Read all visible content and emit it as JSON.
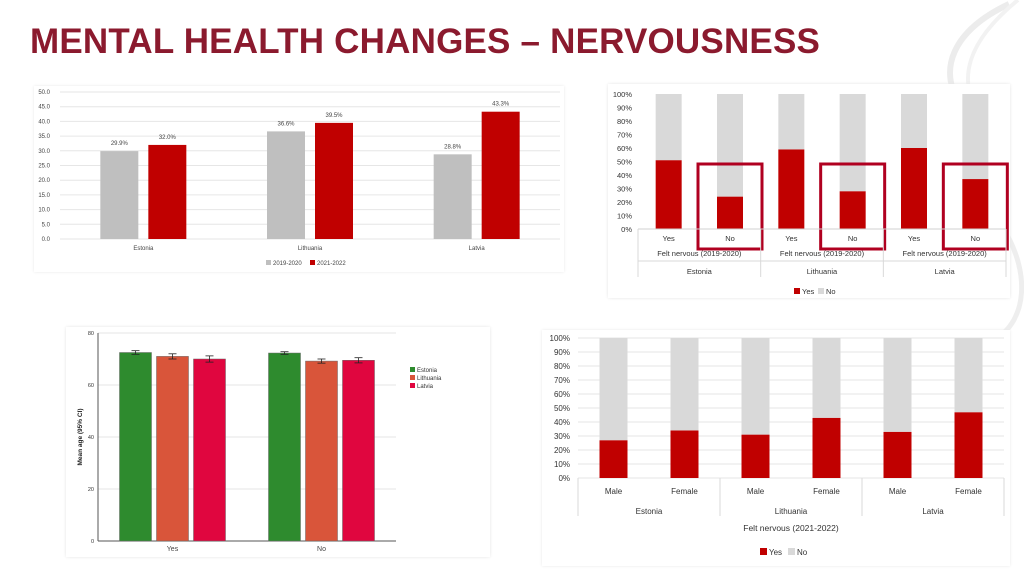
{
  "title": "MENTAL HEALTH CHANGES – NERVOUSNESS",
  "colors": {
    "title": "#8b1a2e",
    "red": "#c00000",
    "grey": "#bfbfbf",
    "light_grey": "#d9d9d9",
    "estonia": "#2e8b2e",
    "lithuania": "#d9553a",
    "latvia": "#e0063f"
  },
  "chart_data": [
    {
      "id": "chart1",
      "type": "bar",
      "categories": [
        "Estonia",
        "Lithuania",
        "Latvia"
      ],
      "series": [
        {
          "name": "2019-2020",
          "values": [
            29.9,
            36.6,
            28.8
          ],
          "labels": [
            "29.9%",
            "36.6%",
            "28.8%"
          ],
          "color": "#bfbfbf"
        },
        {
          "name": "2021-2022",
          "values": [
            32.0,
            39.5,
            43.3
          ],
          "labels": [
            "32.0%",
            "39.5%",
            "43.3%"
          ],
          "color": "#c00000"
        }
      ],
      "ylim": [
        0,
        50
      ],
      "yticks": [
        "0.0",
        "5.0",
        "10.0",
        "15.0",
        "20.0",
        "25.0",
        "30.0",
        "35.0",
        "40.0",
        "45.0",
        "50.0"
      ],
      "grid": true,
      "legend": "bottom"
    },
    {
      "id": "chart2",
      "type": "bar",
      "stacked": "percent",
      "categories": [
        "Yes",
        "No",
        "Yes",
        "No",
        "Yes",
        "No"
      ],
      "group_label": "Felt nervous (2019-2020)",
      "groups": [
        "Estonia",
        "Lithuania",
        "Latvia"
      ],
      "series": [
        {
          "name": "Yes",
          "values": [
            51,
            24,
            59,
            28,
            60,
            37
          ],
          "color": "#c00000"
        },
        {
          "name": "No",
          "values": [
            49,
            76,
            41,
            72,
            40,
            63
          ],
          "color": "#d9d9d9"
        }
      ],
      "highlighted": [
        "No",
        "No",
        "No"
      ],
      "ylim": [
        0,
        100
      ],
      "yticks": [
        "0%",
        "10%",
        "20%",
        "30%",
        "40%",
        "50%",
        "60%",
        "70%",
        "80%",
        "90%",
        "100%"
      ],
      "legend": "bottom"
    },
    {
      "id": "chart3",
      "type": "bar",
      "categories": [
        "Yes",
        "No"
      ],
      "ylabel": "Mean age (95% CI)",
      "series": [
        {
          "name": "Estonia",
          "values": [
            72.5,
            72.3
          ],
          "ci": [
            0.7,
            0.5
          ],
          "color": "#2e8b2e"
        },
        {
          "name": "Lithuania",
          "values": [
            71.0,
            69.2
          ],
          "ci": [
            1.0,
            0.8
          ],
          "color": "#d9553a"
        },
        {
          "name": "Latvia",
          "values": [
            70.0,
            69.5
          ],
          "ci": [
            1.2,
            1.0
          ],
          "color": "#e0063f"
        }
      ],
      "ylim": [
        0,
        80
      ],
      "yticks": [
        "0",
        "20",
        "40",
        "60",
        "80"
      ],
      "grid": true,
      "legend": "right"
    },
    {
      "id": "chart4",
      "type": "bar",
      "stacked": "percent",
      "categories": [
        "Male",
        "Female",
        "Male",
        "Female",
        "Male",
        "Female"
      ],
      "groups": [
        "Estonia",
        "Lithuania",
        "Latvia"
      ],
      "xlabel": "Felt nervous (2021-2022)",
      "series": [
        {
          "name": "Yes",
          "values": [
            27,
            34,
            31,
            43,
            33,
            47
          ],
          "color": "#c00000"
        },
        {
          "name": "No",
          "values": [
            73,
            66,
            69,
            57,
            67,
            53
          ],
          "color": "#d9d9d9"
        }
      ],
      "ylim": [
        0,
        100
      ],
      "yticks": [
        "0%",
        "10%",
        "20%",
        "30%",
        "40%",
        "50%",
        "60%",
        "70%",
        "80%",
        "90%",
        "100%"
      ],
      "grid": true,
      "legend": "bottom"
    }
  ]
}
